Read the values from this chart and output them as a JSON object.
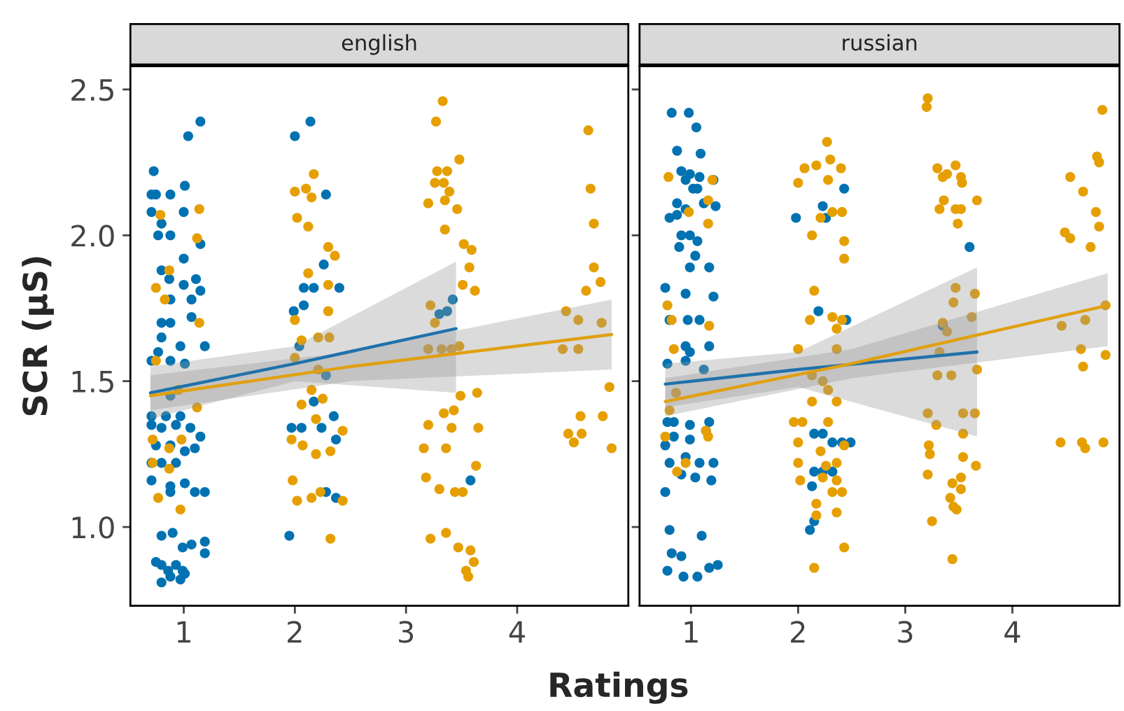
{
  "chart_data": [
    {
      "type": "scatter",
      "title": "english",
      "ylabel": "SCR (μS)",
      "xlabel": "Ratings",
      "xlim": [
        0.52,
        5.0
      ],
      "ylim": [
        0.73,
        2.58
      ],
      "xticks": [
        1,
        2,
        3,
        4
      ],
      "yticks": [
        {
          "value": 1.0,
          "label": "1.0"
        },
        {
          "value": 1.5,
          "label": "1.5"
        },
        {
          "value": 2.0,
          "label": "2.0"
        },
        {
          "value": 2.5,
          "label": "2.5"
        }
      ],
      "grid": false,
      "legend": false,
      "series": [
        {
          "marker": "circle",
          "color": "#0072b2",
          "x": [
            1.15,
            1.04,
            0.73,
            0.71,
            0.75,
            0.88,
            1.01,
            0.71,
            1.0,
            0.8,
            0.88,
            0.77,
            1.15,
            1.0,
            0.8,
            0.87,
            1.11,
            1.0,
            1.15,
            0.88,
            1.07,
            0.8,
            0.88,
            1.07,
            0.8,
            0.77,
            0.97,
            1.19,
            0.71,
            0.88,
            1.01,
            0.88,
            0.71,
            0.84,
            0.97,
            0.71,
            0.8,
            0.93,
            1.06,
            1.15,
            0.75,
            0.88,
            1.01,
            1.1,
            0.71,
            0.8,
            0.93,
            0.71,
            0.88,
            1.01,
            1.1,
            1.19,
            0.88,
            0.8,
            0.9,
            0.99,
            1.07,
            1.19,
            1.19,
            0.75,
            0.8,
            0.86,
            0.93,
            0.99,
            1.01,
            0.8,
            0.88,
            0.97,
            2.14,
            2.0,
            2.28,
            2.26,
            2.4,
            2.08,
            2.17,
            1.99,
            2.08,
            2.04,
            2.28,
            2.17,
            1.97,
            2.06,
            2.24,
            2.35,
            2.37,
            2.28,
            2.37,
            1.95,
            3.42,
            3.3,
            3.37,
            3.58
          ],
          "values": [
            2.39,
            2.34,
            2.22,
            2.14,
            2.14,
            2.14,
            2.17,
            2.08,
            2.08,
            2.04,
            2.0,
            2.0,
            1.97,
            1.92,
            1.88,
            1.85,
            1.85,
            1.83,
            1.81,
            1.78,
            1.78,
            1.7,
            1.7,
            1.72,
            1.65,
            1.6,
            1.62,
            1.62,
            1.57,
            1.57,
            1.56,
            1.45,
            1.38,
            1.38,
            1.38,
            1.35,
            1.34,
            1.35,
            1.34,
            1.31,
            1.28,
            1.28,
            1.26,
            1.27,
            1.22,
            1.22,
            1.22,
            1.16,
            1.14,
            1.15,
            1.12,
            1.12,
            1.12,
            0.97,
            0.98,
            0.93,
            0.94,
            0.95,
            0.91,
            0.88,
            0.87,
            0.85,
            0.87,
            0.85,
            0.84,
            0.81,
            0.83,
            0.82,
            2.39,
            2.34,
            2.14,
            1.9,
            1.82,
            1.82,
            1.82,
            1.74,
            1.76,
            1.62,
            1.52,
            1.43,
            1.34,
            1.34,
            1.34,
            1.38,
            1.3,
            1.12,
            1.1,
            0.97,
            1.78,
            1.73,
            1.74,
            1.16
          ]
        },
        {
          "marker": "circle",
          "color": "#e69f00",
          "x": [
            1.14,
            0.79,
            1.12,
            0.87,
            0.75,
            0.83,
            1.14,
            0.75,
            0.95,
            1.12,
            0.72,
            0.87,
            0.98,
            0.72,
            0.87,
            0.77,
            0.97,
            2.17,
            2.0,
            2.1,
            2.15,
            2.02,
            2.12,
            2.3,
            2.36,
            2.12,
            2.3,
            2.3,
            2.0,
            2.06,
            2.21,
            2.31,
            2.0,
            2.21,
            2.15,
            2.25,
            2.06,
            2.19,
            1.97,
            2.07,
            2.19,
            2.32,
            2.43,
            1.98,
            2.02,
            2.15,
            2.23,
            2.43,
            2.32,
            3.33,
            3.27,
            3.48,
            3.28,
            3.37,
            3.26,
            3.34,
            3.39,
            3.2,
            3.35,
            3.46,
            3.35,
            3.52,
            3.59,
            3.57,
            3.62,
            3.51,
            3.22,
            3.26,
            3.2,
            3.32,
            3.41,
            3.48,
            3.49,
            3.64,
            3.34,
            3.43,
            3.2,
            3.41,
            3.65,
            3.16,
            3.36,
            3.18,
            3.3,
            3.44,
            3.51,
            3.63,
            3.22,
            3.36,
            3.47,
            3.58,
            3.61,
            3.54,
            3.56,
            4.64,
            4.66,
            4.69,
            4.69,
            4.62,
            4.75,
            4.44,
            4.55,
            4.76,
            4.41,
            4.55,
            4.83,
            4.57,
            4.77,
            4.46,
            4.58,
            4.51,
            4.85
          ],
          "values": [
            2.09,
            2.07,
            1.99,
            1.88,
            1.82,
            1.78,
            1.7,
            1.57,
            1.47,
            1.41,
            1.3,
            1.27,
            1.3,
            1.22,
            1.2,
            1.1,
            1.06,
            2.21,
            2.15,
            2.16,
            2.13,
            2.06,
            2.03,
            1.96,
            1.93,
            1.87,
            1.83,
            1.74,
            1.71,
            1.64,
            1.65,
            1.65,
            1.58,
            1.54,
            1.47,
            1.44,
            1.42,
            1.37,
            1.3,
            1.28,
            1.25,
            1.26,
            1.33,
            1.16,
            1.09,
            1.1,
            1.12,
            1.09,
            0.96,
            2.46,
            2.39,
            2.26,
            2.22,
            2.22,
            2.18,
            2.18,
            2.15,
            2.11,
            2.12,
            2.09,
            2.02,
            1.97,
            1.95,
            1.89,
            1.81,
            1.83,
            1.76,
            1.7,
            1.61,
            1.61,
            1.61,
            1.62,
            1.45,
            1.46,
            1.39,
            1.4,
            1.35,
            1.34,
            1.34,
            1.27,
            1.27,
            1.17,
            1.13,
            1.12,
            1.12,
            1.21,
            0.96,
            0.98,
            0.93,
            0.92,
            0.88,
            0.85,
            0.83,
            2.36,
            2.16,
            2.04,
            1.89,
            1.81,
            1.84,
            1.74,
            1.71,
            1.7,
            1.61,
            1.61,
            1.48,
            1.38,
            1.38,
            1.32,
            1.32,
            1.29,
            1.27
          ]
        },
        {
          "type": "line",
          "color": "#1f72ab",
          "x": [
            0.7,
            2.0,
            3.45
          ],
          "values": [
            1.46,
            1.56,
            1.68
          ],
          "lower": [
            1.37,
            1.5,
            1.46
          ],
          "upper": [
            1.55,
            1.62,
            1.91
          ]
        },
        {
          "type": "line",
          "color": "#e0a010",
          "x": [
            0.7,
            2.5,
            4.85
          ],
          "values": [
            1.45,
            1.55,
            1.66
          ],
          "lower": [
            1.4,
            1.5,
            1.54
          ],
          "upper": [
            1.52,
            1.6,
            1.78
          ]
        }
      ]
    },
    {
      "type": "scatter",
      "title": "russian",
      "xlim": [
        0.52,
        5.0
      ],
      "ylim": [
        0.73,
        2.58
      ],
      "xticks": [
        1,
        2,
        3,
        4
      ],
      "yticks": [
        1.0,
        1.5,
        2.0,
        2.5
      ],
      "tick_labels": "x",
      "grid": false,
      "legend": false,
      "series": [
        {
          "marker": "circle",
          "color": "#0072b2",
          "x": [
            0.82,
            0.98,
            1.05,
            0.87,
            1.09,
            0.91,
            0.99,
            1.08,
            0.95,
            1.21,
            1.02,
            1.06,
            0.87,
            1.12,
            1.23,
            0.8,
            0.87,
            0.95,
            0.91,
            0.99,
            0.89,
            1.06,
            1.04,
            0.99,
            1.17,
            0.76,
            0.95,
            1.21,
            0.8,
            0.97,
            1.08,
            0.95,
            1.17,
            0.99,
            0.78,
            0.95,
            1.12,
            0.78,
            0.84,
            0.99,
            1.17,
            0.76,
            0.84,
            0.99,
            1.14,
            0.8,
            0.95,
            1.08,
            1.21,
            0.91,
            1.04,
            1.19,
            0.76,
            0.8,
            1.1,
            0.82,
            0.91,
            0.78,
            0.93,
            1.06,
            1.17,
            1.25,
            2.43,
            1.98,
            2.23,
            2.26,
            2.19,
            2.45,
            2.15,
            2.23,
            2.32,
            2.41,
            2.49,
            2.15,
            2.23,
            2.32,
            2.13,
            2.15,
            2.11,
            3.6,
            3.35
          ],
          "values": [
            2.42,
            2.42,
            2.37,
            2.29,
            2.28,
            2.22,
            2.21,
            2.2,
            2.19,
            2.19,
            2.16,
            2.16,
            2.11,
            2.11,
            2.1,
            2.06,
            2.07,
            2.09,
            2.0,
            2.0,
            1.96,
            1.98,
            1.93,
            1.89,
            1.89,
            1.82,
            1.8,
            1.79,
            1.71,
            1.71,
            1.71,
            1.62,
            1.62,
            1.6,
            1.56,
            1.57,
            1.54,
            1.36,
            1.36,
            1.35,
            1.36,
            1.28,
            1.31,
            1.3,
            1.33,
            1.22,
            1.24,
            1.22,
            1.22,
            1.18,
            1.17,
            1.16,
            1.12,
            0.99,
            0.97,
            0.91,
            0.9,
            0.85,
            0.83,
            0.83,
            0.86,
            0.87,
            2.16,
            2.06,
            2.1,
            2.06,
            1.74,
            1.71,
            1.32,
            1.32,
            1.29,
            1.29,
            1.29,
            1.19,
            1.19,
            1.19,
            1.14,
            1.02,
            0.99,
            1.96,
            1.69
          ]
        },
        {
          "marker": "circle",
          "color": "#e69f00",
          "x": [
            0.79,
            1.2,
            1.16,
            1.16,
            0.98,
            0.78,
            0.82,
            1.17,
            0.84,
            0.86,
            0.8,
            0.76,
            1.14,
            1.16,
            0.95,
            0.87,
            2.27,
            2.06,
            2.17,
            2.3,
            2.4,
            2.0,
            2.28,
            2.32,
            2.41,
            2.21,
            2.13,
            2.43,
            2.43,
            2.15,
            2.11,
            2.32,
            2.41,
            2.36,
            2.0,
            2.36,
            2.13,
            2.23,
            2.28,
            2.13,
            2.36,
            1.96,
            2.04,
            2.28,
            2.0,
            2.21,
            2.43,
            2.0,
            2.26,
            2.36,
            2.02,
            2.23,
            2.36,
            2.32,
            2.41,
            2.17,
            2.36,
            2.17,
            2.43,
            2.15,
            3.21,
            3.2,
            3.3,
            3.39,
            3.47,
            3.35,
            3.52,
            3.53,
            3.36,
            3.32,
            3.47,
            3.52,
            3.67,
            3.49,
            3.47,
            3.45,
            3.65,
            3.62,
            3.35,
            3.39,
            3.32,
            3.3,
            3.43,
            3.67,
            3.21,
            3.54,
            3.65,
            3.29,
            3.54,
            3.22,
            3.23,
            3.54,
            3.66,
            3.21,
            3.52,
            3.44,
            3.52,
            3.42,
            3.45,
            3.48,
            3.25,
            3.44,
            4.84,
            4.79,
            4.81,
            4.54,
            4.66,
            4.78,
            4.81,
            4.49,
            4.54,
            4.73,
            4.87,
            4.46,
            4.68,
            4.64,
            4.87,
            4.66,
            4.45,
            4.65,
            4.68,
            4.85
          ],
          "values": [
            2.2,
            2.19,
            2.12,
            2.04,
            2.08,
            1.76,
            1.71,
            1.69,
            1.61,
            1.46,
            1.4,
            1.31,
            1.33,
            1.31,
            1.22,
            1.19,
            2.32,
            2.23,
            2.24,
            2.26,
            2.23,
            2.18,
            2.19,
            2.08,
            2.08,
            2.06,
            2.0,
            1.98,
            1.92,
            1.81,
            1.71,
            1.72,
            1.71,
            1.68,
            1.61,
            1.61,
            1.52,
            1.5,
            1.47,
            1.43,
            1.43,
            1.36,
            1.36,
            1.36,
            1.29,
            1.26,
            1.28,
            1.22,
            1.21,
            1.22,
            1.16,
            1.17,
            1.16,
            1.12,
            1.12,
            1.08,
            1.05,
            1.04,
            0.93,
            0.86,
            2.47,
            2.44,
            2.23,
            2.21,
            2.24,
            2.2,
            2.2,
            2.18,
            2.12,
            2.09,
            2.09,
            2.09,
            2.12,
            2.04,
            1.82,
            1.77,
            1.8,
            1.72,
            1.7,
            1.67,
            1.6,
            1.52,
            1.52,
            1.54,
            1.39,
            1.39,
            1.39,
            1.35,
            1.32,
            1.28,
            1.25,
            1.24,
            1.21,
            1.18,
            1.17,
            1.15,
            1.13,
            1.1,
            1.07,
            1.06,
            1.02,
            0.89,
            2.43,
            2.27,
            2.25,
            2.2,
            2.15,
            2.08,
            2.03,
            2.01,
            1.99,
            1.96,
            1.76,
            1.69,
            1.71,
            1.61,
            1.59,
            1.55,
            1.29,
            1.29,
            1.27,
            1.29
          ]
        },
        {
          "type": "line",
          "color": "#1f72ab",
          "x": [
            0.76,
            2.0,
            3.67
          ],
          "values": [
            1.49,
            1.54,
            1.6
          ],
          "lower": [
            1.41,
            1.48,
            1.31
          ],
          "upper": [
            1.56,
            1.6,
            1.89
          ]
        },
        {
          "type": "line",
          "color": "#e0a010",
          "x": [
            0.76,
            2.5,
            4.89
          ],
          "values": [
            1.43,
            1.56,
            1.76
          ],
          "lower": [
            1.38,
            1.51,
            1.62
          ],
          "upper": [
            1.51,
            1.61,
            1.87
          ]
        }
      ]
    }
  ]
}
